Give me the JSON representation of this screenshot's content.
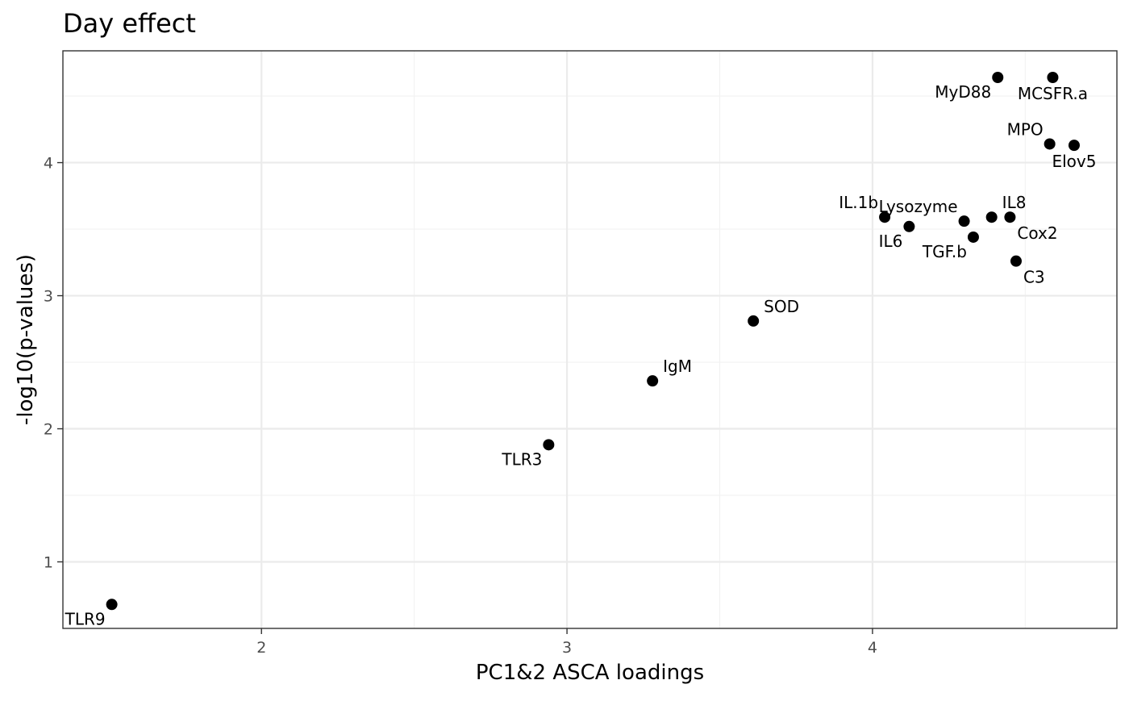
{
  "chart_data": {
    "type": "scatter",
    "title": "Day effect",
    "xlabel": "PC1&2 ASCA loadings",
    "ylabel": "-log10(p-values)",
    "xlim": [
      1.35,
      4.8
    ],
    "ylim": [
      0.5,
      4.84
    ],
    "x_ticks": [
      2,
      3,
      4
    ],
    "y_ticks": [
      1,
      2,
      3,
      4
    ],
    "x_minor_ticks": [
      2.5,
      3.5,
      4.5
    ],
    "y_minor_ticks": [
      1.5,
      2.5,
      3.5,
      4.5
    ],
    "grid": true,
    "point_color": "#000000",
    "points": [
      {
        "label": "TLR9",
        "x": 1.51,
        "y": 0.68,
        "label_pos": "bottom-left"
      },
      {
        "label": "TLR3",
        "x": 2.94,
        "y": 1.88,
        "label_pos": "bottom-left"
      },
      {
        "label": "IgM",
        "x": 3.28,
        "y": 2.36,
        "label_pos": "top-right"
      },
      {
        "label": "SOD",
        "x": 3.61,
        "y": 2.81,
        "label_pos": "top-right"
      },
      {
        "label": "IL.1b",
        "x": 4.04,
        "y": 3.59,
        "label_pos": "top-left"
      },
      {
        "label": "IL6",
        "x": 4.12,
        "y": 3.52,
        "label_pos": "bottom-left"
      },
      {
        "label": "Lysozyme",
        "x": 4.3,
        "y": 3.56,
        "label_pos": "top-left"
      },
      {
        "label": "TGF.b",
        "x": 4.33,
        "y": 3.44,
        "label_pos": "bottom-left"
      },
      {
        "label": "IL8",
        "x": 4.39,
        "y": 3.59,
        "label_pos": "top-right"
      },
      {
        "label": "Cox2",
        "x": 4.45,
        "y": 3.59,
        "label_pos": "bottom-right"
      },
      {
        "label": "C3",
        "x": 4.47,
        "y": 3.26,
        "label_pos": "bottom-right"
      },
      {
        "label": "MyD88",
        "x": 4.41,
        "y": 4.64,
        "label_pos": "bottom-left"
      },
      {
        "label": "MCSFR.a",
        "x": 4.59,
        "y": 4.64,
        "label_pos": "bottom"
      },
      {
        "label": "MPO",
        "x": 4.58,
        "y": 4.14,
        "label_pos": "top-left"
      },
      {
        "label": "Elov5",
        "x": 4.66,
        "y": 4.13,
        "label_pos": "bottom"
      }
    ]
  }
}
